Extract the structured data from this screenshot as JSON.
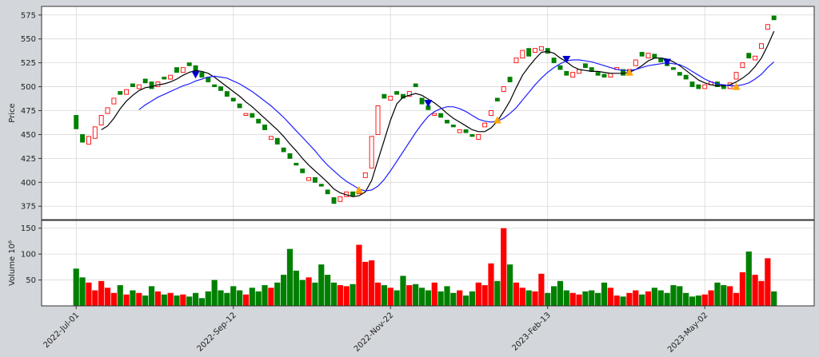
{
  "chart_data": {
    "type": "candlestick",
    "grid": true,
    "xlim": [
      -5.5,
      117.4
    ],
    "xticks": [
      {
        "value": 0,
        "label": "2022-Jul-01"
      },
      {
        "value": 25,
        "label": "2022-Sep-12"
      },
      {
        "value": 50,
        "label": "2022-Nov-22"
      },
      {
        "value": 75,
        "label": "2023-Feb-13"
      },
      {
        "value": 100,
        "label": "2023-May-02"
      }
    ],
    "price": {
      "ylabel": "Price",
      "ylim": [
        361,
        584
      ],
      "yticks": [
        375,
        400,
        425,
        450,
        475,
        500,
        525,
        550,
        575
      ],
      "up_color": "#ff0000",
      "down_color": "#008000",
      "open": [
        470,
        450,
        440,
        446,
        460,
        472,
        482,
        495,
        492,
        503,
        498,
        508,
        505,
        500,
        510,
        508,
        520,
        515,
        525,
        522,
        515,
        510,
        502,
        500,
        495,
        488,
        482,
        470,
        472,
        466,
        460,
        445,
        446,
        436,
        430,
        420,
        414,
        402,
        405,
        398,
        392,
        384,
        380,
        385,
        390,
        388,
        405,
        415,
        450,
        492,
        486,
        495,
        492,
        490,
        503,
        488,
        480,
        470,
        472,
        465,
        460,
        452,
        455,
        450,
        445,
        458,
        470,
        488,
        495,
        510,
        525,
        530,
        540,
        536,
        538,
        540,
        530,
        522,
        516,
        510,
        514,
        524,
        520,
        515,
        513,
        510,
        518,
        518,
        514,
        522,
        536,
        530,
        534,
        530,
        525,
        520,
        515,
        512,
        505,
        502,
        498,
        502,
        505,
        502,
        498,
        508,
        520,
        535,
        528,
        540,
        560,
        574
      ],
      "close": [
        456,
        442,
        448,
        458,
        470,
        478,
        488,
        492,
        497,
        500,
        502,
        504,
        498,
        505,
        508,
        512,
        515,
        520,
        522,
        515,
        510,
        505,
        500,
        496,
        490,
        485,
        478,
        472,
        468,
        462,
        455,
        448,
        440,
        432,
        425,
        418,
        410,
        405,
        400,
        396,
        388,
        378,
        385,
        390,
        386,
        392,
        410,
        448,
        480,
        488,
        490,
        492,
        488,
        495,
        500,
        482,
        476,
        472,
        468,
        462,
        458,
        455,
        452,
        448,
        450,
        462,
        475,
        485,
        500,
        505,
        530,
        538,
        532,
        540,
        542,
        535,
        525,
        518,
        512,
        515,
        518,
        520,
        516,
        512,
        510,
        514,
        520,
        512,
        518,
        528,
        532,
        535,
        530,
        526,
        522,
        518,
        512,
        508,
        500,
        498,
        502,
        505,
        500,
        498,
        504,
        515,
        525,
        530,
        532,
        545,
        565,
        570
      ],
      "series": [
        {
          "color": "#000000",
          "values": [
            null,
            null,
            null,
            null,
            455,
            459,
            467,
            477,
            485,
            491,
            496,
            499,
            500,
            502,
            503,
            505,
            508,
            512,
            515,
            517,
            516,
            514,
            510,
            505,
            500,
            495,
            490,
            484,
            479,
            473,
            467,
            461,
            455,
            448,
            440,
            433,
            425,
            418,
            412,
            406,
            400,
            393,
            389,
            387,
            385,
            386,
            390,
            402,
            423,
            444,
            465,
            482,
            489,
            491,
            493,
            491,
            487,
            483,
            478,
            472,
            467,
            463,
            459,
            455,
            453,
            453,
            457,
            464,
            474,
            485,
            499,
            512,
            521,
            529,
            536,
            537,
            535,
            530,
            526,
            521,
            518,
            517,
            516,
            516,
            515,
            514,
            514,
            514,
            515,
            518,
            522,
            527,
            530,
            530,
            529,
            526,
            522,
            517,
            512,
            507,
            504,
            502,
            501,
            501,
            502,
            505,
            509,
            514,
            521,
            530,
            543,
            558
          ]
        },
        {
          "color": "#1f1fff",
          "values": [
            null,
            null,
            null,
            null,
            null,
            null,
            null,
            null,
            null,
            null,
            476,
            481,
            485,
            489,
            492,
            495,
            498,
            501,
            503,
            506,
            508,
            510,
            511,
            510,
            509,
            506,
            503,
            499,
            495,
            490,
            485,
            480,
            474,
            468,
            461,
            454,
            447,
            440,
            433,
            425,
            418,
            412,
            406,
            401,
            397,
            393,
            391,
            392,
            396,
            403,
            412,
            422,
            432,
            442,
            452,
            461,
            469,
            474,
            477,
            479,
            479,
            477,
            474,
            470,
            466,
            464,
            463,
            464,
            467,
            472,
            478,
            486,
            494,
            502,
            509,
            515,
            520,
            524,
            527,
            528,
            528,
            527,
            526,
            524,
            522,
            520,
            518,
            517,
            517,
            518,
            520,
            522,
            523,
            524,
            525,
            524,
            523,
            520,
            516,
            512,
            508,
            505,
            503,
            502,
            501,
            501,
            502,
            504,
            508,
            513,
            520,
            526
          ]
        }
      ],
      "sell_signals": {
        "color": "#0000cc",
        "x": [
          19,
          56,
          78,
          94
        ],
        "values": [
          512,
          482,
          528,
          525
        ]
      },
      "buy_signals": {
        "color": "#ffa500",
        "x": [
          45,
          67,
          88,
          105
        ],
        "values": [
          392,
          465,
          515,
          500
        ]
      }
    },
    "volume": {
      "ylabel": "Volume  10⁶",
      "ylim": [
        0,
        165
      ],
      "yticks": [
        50,
        100,
        150
      ],
      "values": [
        72,
        55,
        45,
        30,
        48,
        35,
        25,
        40,
        22,
        30,
        25,
        20,
        38,
        28,
        22,
        25,
        20,
        22,
        18,
        25,
        15,
        28,
        50,
        30,
        25,
        38,
        30,
        22,
        35,
        28,
        40,
        35,
        45,
        60,
        110,
        68,
        50,
        55,
        45,
        80,
        60,
        45,
        40,
        38,
        42,
        118,
        85,
        88,
        45,
        40,
        35,
        30,
        58,
        40,
        42,
        35,
        30,
        45,
        28,
        38,
        25,
        30,
        20,
        28,
        45,
        40,
        82,
        48,
        150,
        80,
        45,
        35,
        30,
        28,
        62,
        25,
        38,
        48,
        30,
        25,
        22,
        28,
        30,
        25,
        45,
        35,
        20,
        18,
        25,
        30,
        22,
        28,
        35,
        30,
        25,
        40,
        38,
        25,
        18,
        20,
        22,
        30,
        45,
        40,
        38,
        25,
        65,
        105,
        60,
        48,
        92,
        28
      ]
    }
  }
}
